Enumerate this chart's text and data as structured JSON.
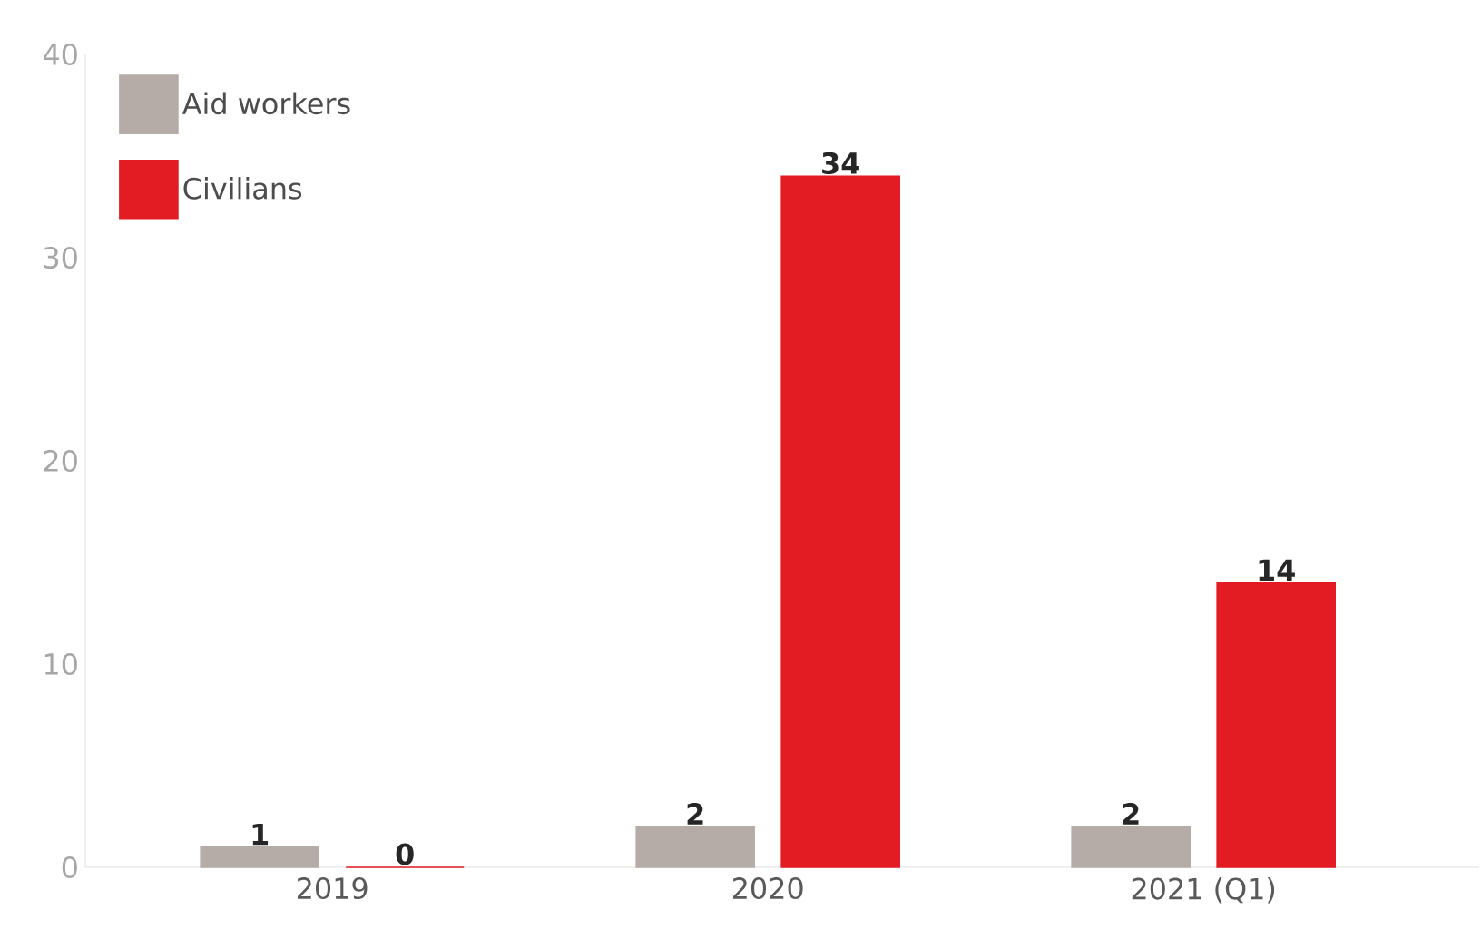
{
  "chart_data": {
    "type": "bar",
    "categories": [
      "2019",
      "2020",
      "2021 (Q1)"
    ],
    "series": [
      {
        "name": "Aid workers",
        "color": "#b5aca8",
        "values": [
          1,
          2,
          2
        ]
      },
      {
        "name": "Civilians",
        "color": "#e31b23",
        "values": [
          0,
          34,
          14
        ]
      }
    ],
    "ylim": [
      0,
      40
    ],
    "yticks": [
      0,
      10,
      20,
      30,
      40
    ],
    "data_labels": true,
    "legend": "top left",
    "grid": false
  }
}
